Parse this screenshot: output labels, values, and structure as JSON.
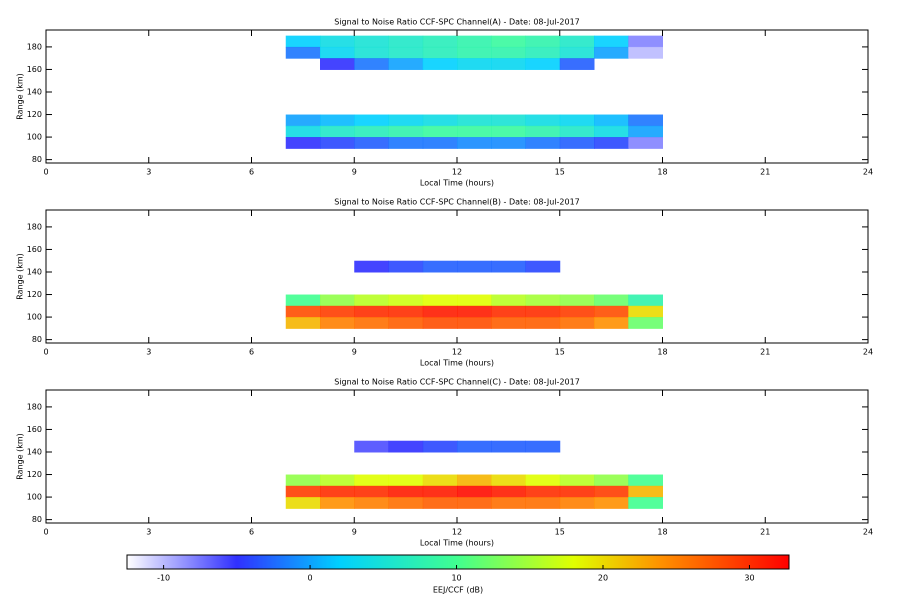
{
  "chart_data": [
    {
      "type": "heatmap",
      "title": "Signal to Noise Ratio CCF-SPC Channel(A) - Date: 08-Jul-2017",
      "x_label": "Local Time (hours)",
      "y_label": "Range (km)",
      "xlim": [
        0,
        24
      ],
      "xticks": [
        0,
        3,
        6,
        9,
        12,
        15,
        18,
        21,
        24
      ],
      "ylim": [
        77,
        195
      ],
      "yticks": [
        80,
        100,
        120,
        140,
        160,
        180
      ],
      "x": [
        7.5,
        8.5,
        9.5,
        10.5,
        11.5,
        12.5,
        13.5,
        14.5,
        15.5,
        16.5,
        17.5
      ],
      "y": [
        185,
        175,
        165,
        155,
        145,
        135,
        125,
        115,
        105,
        95,
        85
      ],
      "z": [
        [
          2,
          4,
          5,
          6,
          7,
          8,
          9,
          8,
          6,
          2,
          -8
        ],
        [
          -2,
          3,
          5,
          6,
          7,
          8,
          8,
          7,
          5,
          0,
          -10
        ],
        [
          null,
          -5,
          -2,
          0,
          2,
          3,
          3,
          2,
          -3,
          null,
          null
        ],
        [
          null,
          null,
          null,
          null,
          null,
          null,
          null,
          null,
          null,
          null,
          null
        ],
        [
          null,
          null,
          null,
          null,
          null,
          null,
          null,
          null,
          null,
          null,
          null
        ],
        [
          null,
          null,
          null,
          null,
          null,
          null,
          null,
          null,
          null,
          null,
          null
        ],
        [
          null,
          null,
          null,
          null,
          null,
          null,
          null,
          null,
          null,
          null,
          null
        ],
        [
          0,
          1,
          2,
          3,
          4,
          5,
          5,
          4,
          3,
          1,
          -2
        ],
        [
          4,
          6,
          7,
          8,
          9,
          9,
          9,
          8,
          6,
          4,
          0
        ],
        [
          -5,
          -4,
          -3,
          -2,
          -2,
          -1,
          -1,
          -2,
          -3,
          -4,
          -8
        ],
        [
          null,
          null,
          null,
          null,
          null,
          null,
          null,
          null,
          null,
          null,
          null
        ]
      ]
    },
    {
      "type": "heatmap",
      "title": "Signal to Noise Ratio CCF-SPC Channel(B) - Date: 08-Jul-2017",
      "x_label": "Local Time (hours)",
      "y_label": "Range (km)",
      "xlim": [
        0,
        24
      ],
      "xticks": [
        0,
        3,
        6,
        9,
        12,
        15,
        18,
        21,
        24
      ],
      "ylim": [
        77,
        195
      ],
      "yticks": [
        80,
        100,
        120,
        140,
        160,
        180
      ],
      "x": [
        7.5,
        8.5,
        9.5,
        10.5,
        11.5,
        12.5,
        13.5,
        14.5,
        15.5,
        16.5,
        17.5
      ],
      "y": [
        185,
        175,
        165,
        155,
        145,
        135,
        125,
        115,
        105,
        95,
        85
      ],
      "z": [
        [
          null,
          null,
          null,
          null,
          null,
          null,
          null,
          null,
          null,
          null,
          null
        ],
        [
          null,
          null,
          null,
          null,
          null,
          null,
          null,
          null,
          null,
          null,
          null
        ],
        [
          null,
          null,
          null,
          null,
          null,
          null,
          null,
          null,
          null,
          null,
          null
        ],
        [
          null,
          null,
          null,
          null,
          null,
          null,
          null,
          null,
          null,
          null,
          null
        ],
        [
          null,
          null,
          -5,
          -4,
          -3,
          -3,
          -3,
          -4,
          null,
          null,
          null
        ],
        [
          null,
          null,
          null,
          null,
          null,
          null,
          null,
          null,
          null,
          null,
          null
        ],
        [
          null,
          null,
          null,
          null,
          null,
          null,
          null,
          null,
          null,
          null,
          null
        ],
        [
          10,
          14,
          16,
          17,
          18,
          18,
          16,
          15,
          14,
          12,
          8
        ],
        [
          28,
          29,
          30,
          30,
          31,
          31,
          30,
          30,
          29,
          28,
          20
        ],
        [
          22,
          25,
          26,
          27,
          28,
          28,
          27,
          27,
          26,
          24,
          12
        ],
        [
          null,
          null,
          null,
          null,
          null,
          null,
          null,
          null,
          null,
          null,
          null
        ]
      ]
    },
    {
      "type": "heatmap",
      "title": "Signal to Noise Ratio CCF-SPC Channel(C) - Date: 08-Jul-2017",
      "x_label": "Local Time (hours)",
      "y_label": "Range (km)",
      "xlim": [
        0,
        24
      ],
      "xticks": [
        0,
        3,
        6,
        9,
        12,
        15,
        18,
        21,
        24
      ],
      "ylim": [
        77,
        195
      ],
      "yticks": [
        80,
        100,
        120,
        140,
        160,
        180
      ],
      "x": [
        7.5,
        8.5,
        9.5,
        10.5,
        11.5,
        12.5,
        13.5,
        14.5,
        15.5,
        16.5,
        17.5
      ],
      "y": [
        185,
        175,
        165,
        155,
        145,
        135,
        125,
        115,
        105,
        95,
        85
      ],
      "z": [
        [
          null,
          null,
          null,
          null,
          null,
          null,
          null,
          null,
          null,
          null,
          null
        ],
        [
          null,
          null,
          null,
          null,
          null,
          null,
          null,
          null,
          null,
          null,
          null
        ],
        [
          null,
          null,
          null,
          null,
          null,
          null,
          null,
          null,
          null,
          null,
          null
        ],
        [
          null,
          null,
          null,
          null,
          null,
          null,
          null,
          null,
          null,
          null,
          null
        ],
        [
          null,
          null,
          -6,
          -5,
          -4,
          -3,
          -3,
          -3,
          null,
          null,
          null
        ],
        [
          null,
          null,
          null,
          null,
          null,
          null,
          null,
          null,
          null,
          null,
          null
        ],
        [
          null,
          null,
          null,
          null,
          null,
          null,
          null,
          null,
          null,
          null,
          null
        ],
        [
          14,
          16,
          18,
          18,
          20,
          22,
          20,
          18,
          16,
          14,
          10
        ],
        [
          29,
          30,
          30,
          31,
          31,
          32,
          31,
          30,
          30,
          29,
          22
        ],
        [
          20,
          24,
          25,
          26,
          27,
          27,
          26,
          26,
          25,
          24,
          10
        ],
        [
          null,
          null,
          null,
          null,
          null,
          null,
          null,
          null,
          null,
          null,
          null
        ]
      ]
    }
  ],
  "colorbar": {
    "label": "EEJ/CCF (dB)",
    "lim": [
      -12.5,
      32.7
    ],
    "ticks": [
      -10,
      0,
      10,
      20,
      30
    ],
    "colorscale": [
      [
        -12.5,
        "#ffffff"
      ],
      [
        -5,
        "#3030ff"
      ],
      [
        2,
        "#00d0ff"
      ],
      [
        10,
        "#40ff90"
      ],
      [
        18,
        "#e0ff00"
      ],
      [
        24,
        "#ff9000"
      ],
      [
        32.7,
        "#ff0000"
      ]
    ]
  }
}
